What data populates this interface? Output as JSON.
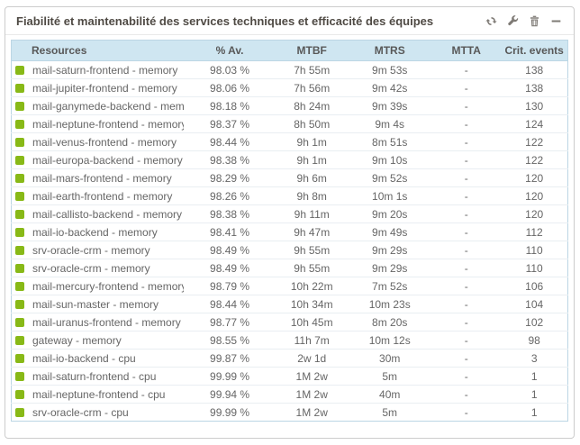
{
  "widget": {
    "title": "Fiabilité et maintenabilité des services techniques et efficacité des équipes",
    "toolbar": {
      "refresh": "refresh",
      "configure": "configure",
      "delete": "delete",
      "collapse": "collapse"
    }
  },
  "table": {
    "columns": [
      {
        "key": "resource",
        "label": "Resources",
        "width": "31%"
      },
      {
        "key": "availability",
        "label": "% Av.",
        "width": "16.5%"
      },
      {
        "key": "mtbf",
        "label": "MTBF",
        "width": "13%"
      },
      {
        "key": "mtrs",
        "label": "MTRS",
        "width": "15%"
      },
      {
        "key": "mtta",
        "label": "MTTA",
        "width": "12.5%"
      },
      {
        "key": "crit_events",
        "label": "Crit. events",
        "width": "12%"
      }
    ],
    "rows": [
      {
        "status": "ok",
        "resource": "mail-saturn-frontend - memory",
        "availability": "98.03 %",
        "mtbf": "7h 55m",
        "mtrs": "9m 53s",
        "mtta": "-",
        "crit_events": "138"
      },
      {
        "status": "ok",
        "resource": "mail-jupiter-frontend - memory",
        "availability": "98.06 %",
        "mtbf": "7h 56m",
        "mtrs": "9m 42s",
        "mtta": "-",
        "crit_events": "138"
      },
      {
        "status": "ok",
        "resource": "mail-ganymede-backend - memory",
        "availability": "98.18 %",
        "mtbf": "8h 24m",
        "mtrs": "9m 39s",
        "mtta": "-",
        "crit_events": "130"
      },
      {
        "status": "ok",
        "resource": "mail-neptune-frontend - memory",
        "availability": "98.37 %",
        "mtbf": "8h 50m",
        "mtrs": "9m 4s",
        "mtta": "-",
        "crit_events": "124"
      },
      {
        "status": "ok",
        "resource": "mail-venus-frontend - memory",
        "availability": "98.44 %",
        "mtbf": "9h 1m",
        "mtrs": "8m 51s",
        "mtta": "-",
        "crit_events": "122"
      },
      {
        "status": "ok",
        "resource": "mail-europa-backend - memory",
        "availability": "98.38 %",
        "mtbf": "9h 1m",
        "mtrs": "9m 10s",
        "mtta": "-",
        "crit_events": "122"
      },
      {
        "status": "ok",
        "resource": "mail-mars-frontend - memory",
        "availability": "98.29 %",
        "mtbf": "9h 6m",
        "mtrs": "9m 52s",
        "mtta": "-",
        "crit_events": "120"
      },
      {
        "status": "ok",
        "resource": "mail-earth-frontend - memory",
        "availability": "98.26 %",
        "mtbf": "9h 8m",
        "mtrs": "10m 1s",
        "mtta": "-",
        "crit_events": "120"
      },
      {
        "status": "ok",
        "resource": "mail-callisto-backend - memory",
        "availability": "98.38 %",
        "mtbf": "9h 11m",
        "mtrs": "9m 20s",
        "mtta": "-",
        "crit_events": "120"
      },
      {
        "status": "ok",
        "resource": "mail-io-backend - memory",
        "availability": "98.41 %",
        "mtbf": "9h 47m",
        "mtrs": "9m 49s",
        "mtta": "-",
        "crit_events": "112"
      },
      {
        "status": "ok",
        "resource": "srv-oracle-crm - memory",
        "availability": "98.49 %",
        "mtbf": "9h 55m",
        "mtrs": "9m 29s",
        "mtta": "-",
        "crit_events": "110"
      },
      {
        "status": "ok",
        "resource": "srv-oracle-crm - memory",
        "availability": "98.49 %",
        "mtbf": "9h 55m",
        "mtrs": "9m 29s",
        "mtta": "-",
        "crit_events": "110"
      },
      {
        "status": "ok",
        "resource": "mail-mercury-frontend - memory",
        "availability": "98.79 %",
        "mtbf": "10h 22m",
        "mtrs": "7m 52s",
        "mtta": "-",
        "crit_events": "106"
      },
      {
        "status": "ok",
        "resource": "mail-sun-master - memory",
        "availability": "98.44 %",
        "mtbf": "10h 34m",
        "mtrs": "10m 23s",
        "mtta": "-",
        "crit_events": "104"
      },
      {
        "status": "ok",
        "resource": "mail-uranus-frontend - memory",
        "availability": "98.77 %",
        "mtbf": "10h 45m",
        "mtrs": "8m 20s",
        "mtta": "-",
        "crit_events": "102"
      },
      {
        "status": "ok",
        "resource": "gateway - memory",
        "availability": "98.55 %",
        "mtbf": "11h 7m",
        "mtrs": "10m 12s",
        "mtta": "-",
        "crit_events": "98"
      },
      {
        "status": "ok",
        "resource": "mail-io-backend - cpu",
        "availability": "99.87 %",
        "mtbf": "2w 1d",
        "mtrs": "30m",
        "mtta": "-",
        "crit_events": "3"
      },
      {
        "status": "ok",
        "resource": "mail-saturn-frontend - cpu",
        "availability": "99.99 %",
        "mtbf": "1M 2w",
        "mtrs": "5m",
        "mtta": "-",
        "crit_events": "1"
      },
      {
        "status": "ok",
        "resource": "mail-neptune-frontend - cpu",
        "availability": "99.94 %",
        "mtbf": "1M 2w",
        "mtrs": "40m",
        "mtta": "-",
        "crit_events": "1"
      },
      {
        "status": "ok",
        "resource": "srv-oracle-crm - cpu",
        "availability": "99.99 %",
        "mtbf": "1M 2w",
        "mtrs": "5m",
        "mtta": "-",
        "crit_events": "1"
      }
    ]
  },
  "colors": {
    "status_ok": "#88b917",
    "header_bg": "#cfe6f1",
    "table_border": "#bcd6e4",
    "row_border": "#e9eef2",
    "title_text": "#4f4a44",
    "cell_text": "#666666",
    "icon": "#7f7b76"
  }
}
